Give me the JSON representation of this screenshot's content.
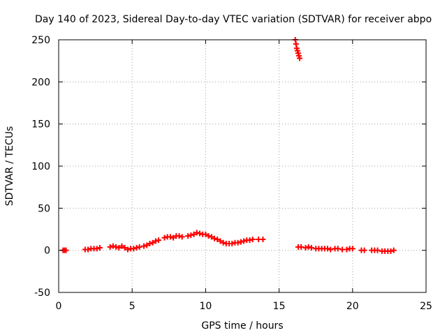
{
  "chart_data": {
    "type": "scatter",
    "title": "Day 140 of 2023, Sidereal Day-to-day VTEC variation (SDTVAR) for receiver abpo",
    "xlabel": "GPS time / hours",
    "ylabel": "SDTVAR / TECUs",
    "xlim": [
      0,
      25
    ],
    "ylim": [
      -50,
      250
    ],
    "xticks": [
      0,
      5,
      10,
      15,
      20,
      25
    ],
    "yticks": [
      -50,
      0,
      50,
      100,
      150,
      200,
      250
    ],
    "grid": true,
    "marker": "+",
    "color": "#ff0000",
    "series": [
      {
        "name": "SDTVAR",
        "points": [
          [
            0.3,
            0
          ],
          [
            0.4,
            0
          ],
          [
            0.5,
            0
          ],
          [
            1.8,
            1
          ],
          [
            2.0,
            1
          ],
          [
            2.2,
            2
          ],
          [
            2.4,
            2
          ],
          [
            2.6,
            2
          ],
          [
            2.8,
            3
          ],
          [
            3.5,
            4
          ],
          [
            3.7,
            5
          ],
          [
            3.9,
            4
          ],
          [
            4.1,
            3
          ],
          [
            4.3,
            5
          ],
          [
            4.5,
            3
          ],
          [
            4.7,
            1
          ],
          [
            4.9,
            2
          ],
          [
            5.1,
            2
          ],
          [
            5.3,
            3
          ],
          [
            5.5,
            4
          ],
          [
            5.8,
            5
          ],
          [
            6.0,
            6
          ],
          [
            6.2,
            8
          ],
          [
            6.4,
            9
          ],
          [
            6.6,
            11
          ],
          [
            6.8,
            12
          ],
          [
            7.2,
            15
          ],
          [
            7.4,
            16
          ],
          [
            7.6,
            16
          ],
          [
            7.8,
            15
          ],
          [
            8.0,
            17
          ],
          [
            8.2,
            17
          ],
          [
            8.4,
            16
          ],
          [
            8.8,
            17
          ],
          [
            9.0,
            18
          ],
          [
            9.2,
            19
          ],
          [
            9.4,
            21
          ],
          [
            9.6,
            20
          ],
          [
            9.8,
            19
          ],
          [
            10.0,
            19
          ],
          [
            10.2,
            17
          ],
          [
            10.4,
            16
          ],
          [
            10.6,
            14
          ],
          [
            10.8,
            13
          ],
          [
            11.0,
            11
          ],
          [
            11.2,
            9
          ],
          [
            11.4,
            8
          ],
          [
            11.6,
            8
          ],
          [
            11.8,
            8
          ],
          [
            12.0,
            9
          ],
          [
            12.2,
            9
          ],
          [
            12.4,
            10
          ],
          [
            12.6,
            11
          ],
          [
            12.8,
            12
          ],
          [
            13.0,
            12
          ],
          [
            13.2,
            13
          ],
          [
            13.6,
            13
          ],
          [
            13.9,
            13
          ],
          [
            16.1,
            250
          ],
          [
            16.15,
            245
          ],
          [
            16.2,
            240
          ],
          [
            16.25,
            237
          ],
          [
            16.3,
            234
          ],
          [
            16.35,
            231
          ],
          [
            16.4,
            228
          ],
          [
            16.3,
            4
          ],
          [
            16.5,
            4
          ],
          [
            16.8,
            3
          ],
          [
            17.0,
            4
          ],
          [
            17.2,
            3
          ],
          [
            17.5,
            2
          ],
          [
            17.7,
            2
          ],
          [
            17.9,
            2
          ],
          [
            18.1,
            2
          ],
          [
            18.3,
            2
          ],
          [
            18.5,
            1
          ],
          [
            18.8,
            2
          ],
          [
            19.0,
            2
          ],
          [
            19.3,
            1
          ],
          [
            19.6,
            1
          ],
          [
            19.8,
            2
          ],
          [
            20.0,
            2
          ],
          [
            20.6,
            0
          ],
          [
            20.8,
            0
          ],
          [
            21.3,
            0
          ],
          [
            21.5,
            0
          ],
          [
            21.7,
            0
          ],
          [
            22.0,
            -1
          ],
          [
            22.2,
            -1
          ],
          [
            22.4,
            -1
          ],
          [
            22.6,
            -1
          ],
          [
            22.8,
            0
          ]
        ]
      }
    ]
  }
}
